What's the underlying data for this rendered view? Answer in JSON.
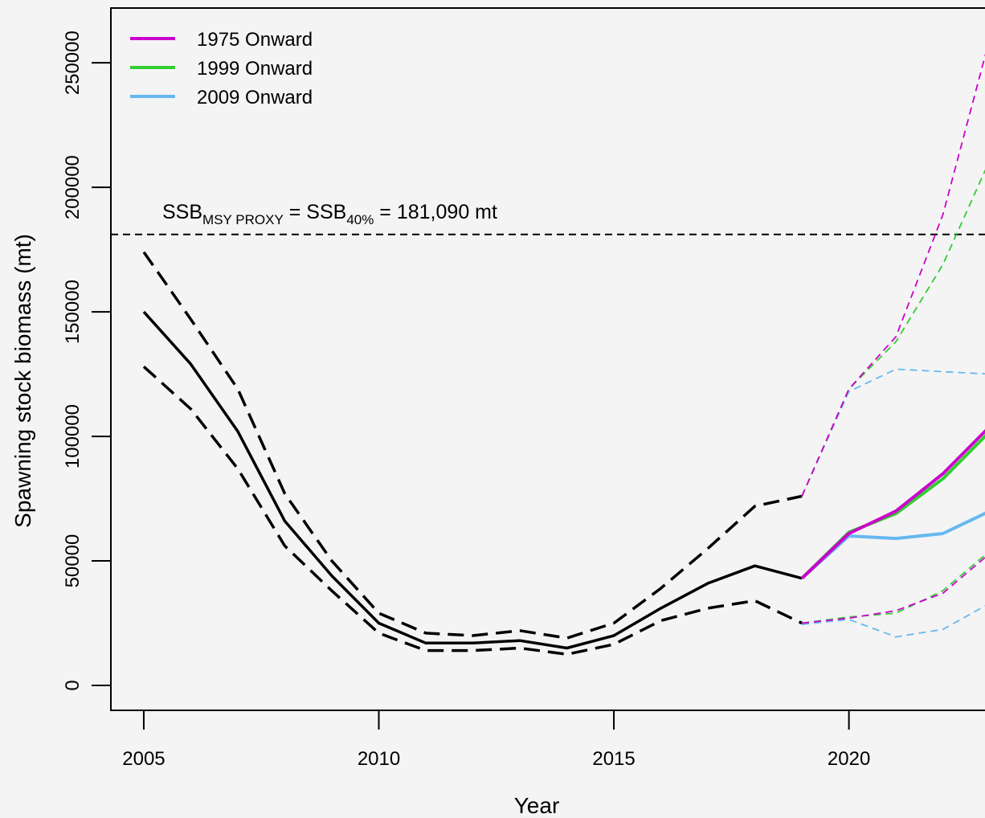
{
  "chart_data": {
    "type": "line",
    "xlabel": "Year",
    "ylabel": "Spawning stock biomass (mt)",
    "xlim": [
      2004.3,
      2023.1
    ],
    "ylim": [
      -10000,
      272000
    ],
    "x_ticks": [
      2005,
      2010,
      2015,
      2020
    ],
    "y_ticks": [
      0,
      50000,
      100000,
      150000,
      200000,
      250000
    ],
    "legend_position": "top-left",
    "reference_line": {
      "y": 181090,
      "label_parts": [
        "SSB",
        "MSY PROXY",
        " = SSB",
        "40%",
        " = 181,090 mt"
      ]
    },
    "historical": {
      "color": "#000000",
      "x": [
        2005,
        2006,
        2007,
        2008,
        2009,
        2010,
        2011,
        2012,
        2013,
        2014,
        2015,
        2016,
        2017,
        2018,
        2019
      ],
      "values": [
        150000,
        129000,
        102000,
        66000,
        44000,
        25000,
        17000,
        17000,
        18000,
        15000,
        20000,
        31000,
        41000,
        48000,
        43000
      ],
      "upper": [
        174000,
        147000,
        119000,
        77000,
        50000,
        29000,
        21000,
        20000,
        22000,
        19000,
        25000,
        39000,
        55000,
        72000,
        76000
      ],
      "lower": [
        128000,
        111000,
        87000,
        56000,
        38000,
        21000,
        14000,
        14000,
        15000,
        12500,
        16500,
        26000,
        31000,
        34000,
        25000
      ]
    },
    "series": [
      {
        "name": "1975 Onward",
        "color": "#cc00cc",
        "x": [
          2019,
          2020,
          2021,
          2022,
          2023
        ],
        "values": [
          43000,
          61000,
          70000,
          85000,
          104000
        ],
        "upper": [
          76000,
          119000,
          140000,
          189000,
          260000
        ],
        "lower": [
          25000,
          27000,
          30000,
          37000,
          53000
        ]
      },
      {
        "name": "1999 Onward",
        "color": "#33cc33",
        "x": [
          2019,
          2020,
          2021,
          2022,
          2023
        ],
        "values": [
          43000,
          61500,
          69000,
          83000,
          102000
        ],
        "upper": [
          76000,
          119000,
          138000,
          169000,
          211000
        ],
        "lower": [
          25000,
          27500,
          29000,
          38000,
          54000
        ]
      },
      {
        "name": "2009 Onward",
        "color": "#66b8f0",
        "x": [
          2019,
          2020,
          2021,
          2022,
          2023
        ],
        "values": [
          43000,
          60000,
          59000,
          61000,
          70000
        ],
        "upper": [
          76000,
          118000,
          127000,
          126000,
          125000
        ],
        "lower": [
          24500,
          26500,
          19500,
          22500,
          33000
        ]
      }
    ]
  }
}
